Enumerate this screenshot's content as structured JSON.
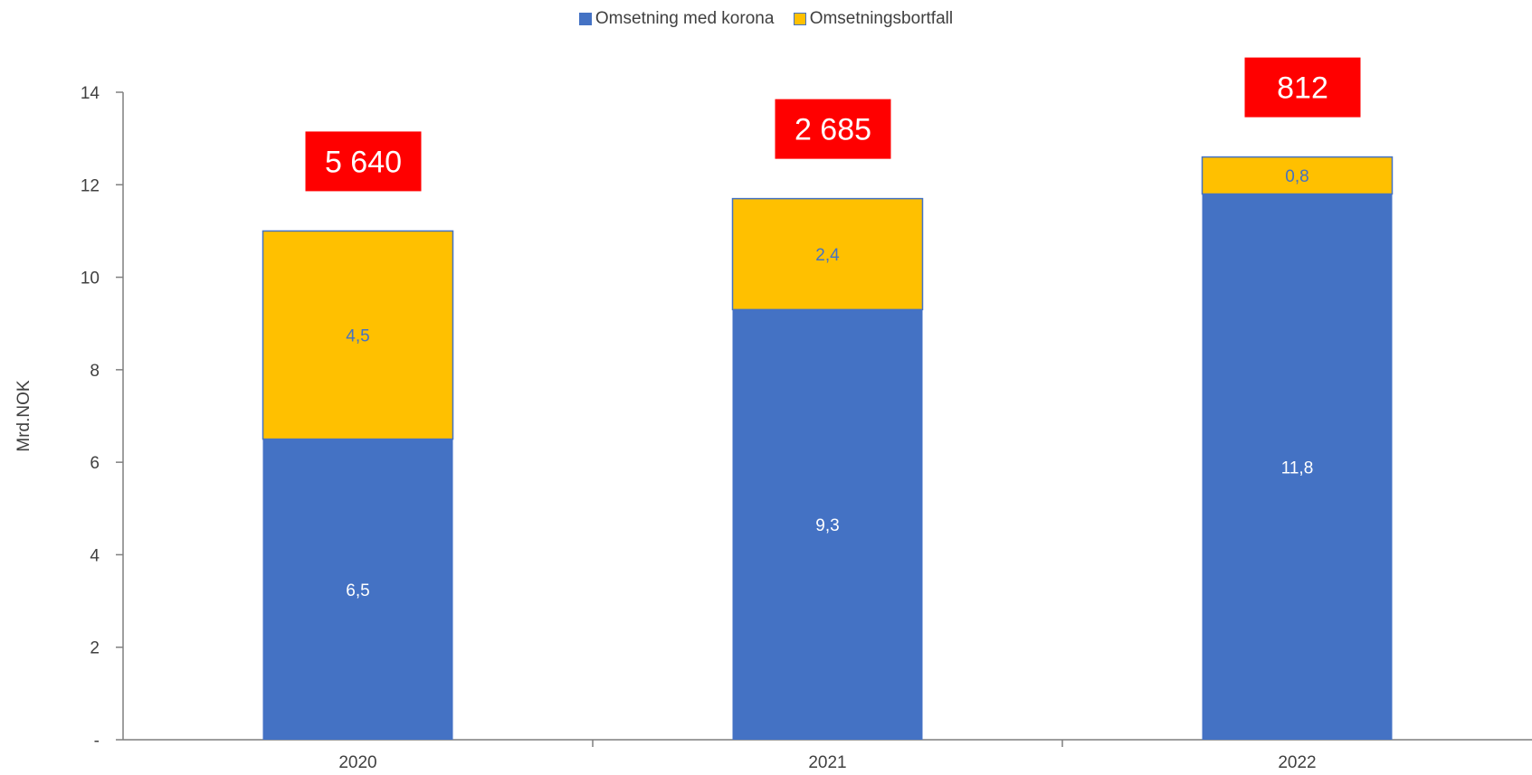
{
  "legend": {
    "item0": "Omsetning med korona",
    "item1": "Omsetningsbortfall"
  },
  "colors": {
    "series0": "#4472C4",
    "series1": "#FFC000",
    "series1_border": "#4472C4",
    "callout": "#FF0000",
    "axis": "#7f7f7f",
    "label_light": "#ffffff",
    "label_dark": "#4472C4"
  },
  "chart_data": {
    "type": "bar",
    "stacked": true,
    "categories": [
      "2020",
      "2021",
      "2022"
    ],
    "series": [
      {
        "name": "Omsetning med korona",
        "values": [
          6.5,
          9.3,
          11.8
        ],
        "labels": [
          "6,5",
          "9,3",
          "11,8"
        ]
      },
      {
        "name": "Omsetningsbortfall",
        "values": [
          4.5,
          2.4,
          0.8
        ],
        "labels": [
          "4,5",
          "2,4",
          "0,8"
        ]
      }
    ],
    "callouts": [
      "5 640",
      "2 685",
      "812"
    ],
    "ylabel": "Mrd.NOK",
    "ylim": [
      0,
      14
    ],
    "yticks": [
      0,
      2,
      4,
      6,
      8,
      10,
      12,
      14
    ],
    "ytick_labels": [
      "-",
      "2",
      "4",
      "6",
      "8",
      "10",
      "12",
      "14"
    ],
    "grid": false,
    "legend_position": "top"
  }
}
